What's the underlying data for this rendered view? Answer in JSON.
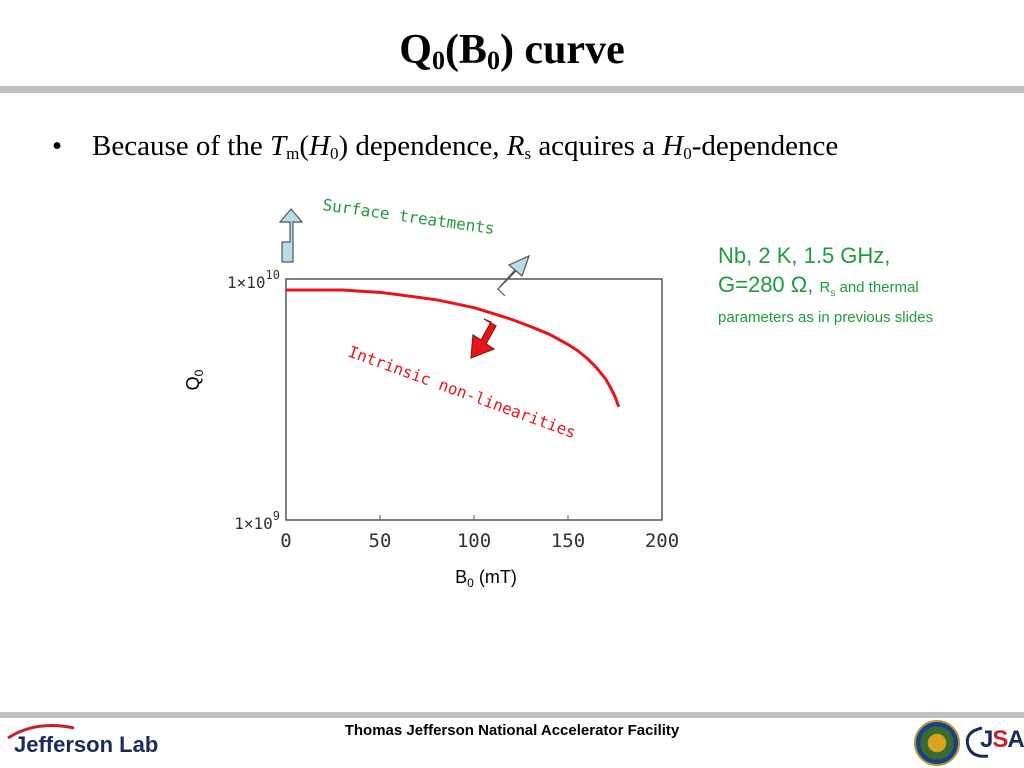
{
  "slide": {
    "title_q": "Q",
    "title_sub1": "0",
    "title_open": "(B",
    "title_sub2": "0",
    "title_close": ") curve",
    "bullet_marker": "•",
    "bullet_parts": {
      "p1": "Because of the ",
      "p2": "T",
      "p3": "m",
      "p4": "(",
      "p5": "H",
      "p6": "0",
      "p7": ") dependence, ",
      "p8": "R",
      "p9": "s",
      "p10": " acquires a ",
      "p11": "H",
      "p12": "0",
      "p13": "-dependence"
    },
    "info": {
      "line1": "Nb, 2 K, 1.5 GHz,",
      "line2_main": "G=280 Ω,",
      "line2_r": "R",
      "line2_rsub": "s",
      "line2_tail": " and thermal",
      "line3": "parameters as in previous slides"
    },
    "footer": "Thomas Jefferson National Accelerator Facility",
    "logo_left": "Jefferson Lab",
    "logo_right_j": "J",
    "logo_right_s": "S",
    "logo_right_a": "A"
  },
  "chart_data": {
    "type": "line",
    "xlabel_main": "B",
    "xlabel_sub": "0",
    "xlabel_unit": " (mT)",
    "ylabel_main": "Q",
    "ylabel_sub": "0",
    "xlim": [
      0,
      200
    ],
    "ylim": [
      1000000000,
      10000000000
    ],
    "yscale": "log",
    "grid": false,
    "x_ticks": [
      "0",
      "50",
      "100",
      "150",
      "200"
    ],
    "y_ticks": [
      {
        "mant": "1×10",
        "exp": "10"
      },
      {
        "mant": "1×10",
        "exp": "9"
      }
    ],
    "annotations": {
      "surface": "Surface treatments",
      "intrinsic": "Intrinsic non-linearities"
    },
    "series": [
      {
        "color": "#e8141c",
        "x": [
          0,
          10,
          20,
          30,
          40,
          50,
          60,
          70,
          80,
          90,
          100,
          110,
          120,
          130,
          140,
          150,
          155,
          160,
          165,
          170,
          173,
          175,
          177
        ],
        "y": [
          9000000000.0,
          9000000000.0,
          9000000000.0,
          9000000000.0,
          8900000000.0,
          8800000000.0,
          8600000000.0,
          8400000000.0,
          8200000000.0,
          7900000000.0,
          7600000000.0,
          7200000000.0,
          6800000000.0,
          6350000000.0,
          5900000000.0,
          5350000000.0,
          5050000000.0,
          4700000000.0,
          4300000000.0,
          3850000000.0,
          3500000000.0,
          3250000000.0,
          2950000000.0
        ]
      }
    ]
  },
  "colors": {
    "curve": "#e8141c",
    "annotation_green": "#1f9b3c",
    "up_arrow_fill": "#b9dde6",
    "down_arrow_fill": "#e8141c"
  }
}
